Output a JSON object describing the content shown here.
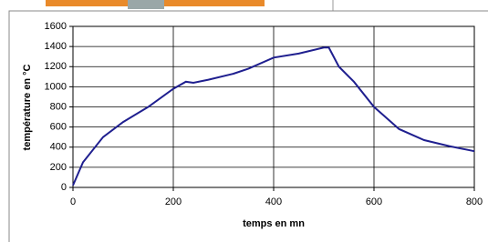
{
  "chart_data": {
    "type": "line",
    "x_label": "temps en mn",
    "y_label": "température en °C",
    "x": [
      0,
      20,
      60,
      100,
      150,
      200,
      225,
      240,
      270,
      320,
      350,
      400,
      450,
      500,
      510,
      530,
      560,
      600,
      650,
      700,
      750,
      800
    ],
    "series": [
      {
        "color": "#1f1f8f",
        "values": [
          20,
          250,
          500,
          650,
          800,
          980,
          1050,
          1040,
          1070,
          1130,
          1180,
          1290,
          1330,
          1390,
          1390,
          1200,
          1050,
          800,
          580,
          470,
          410,
          360
        ]
      }
    ],
    "xlim": [
      0,
      800
    ],
    "xticks": [
      0,
      200,
      400,
      600,
      800
    ],
    "ylim": [
      0,
      1600
    ],
    "yticks": [
      0,
      200,
      400,
      600,
      800,
      1000,
      1200,
      1400,
      1600
    ],
    "grid": true
  }
}
